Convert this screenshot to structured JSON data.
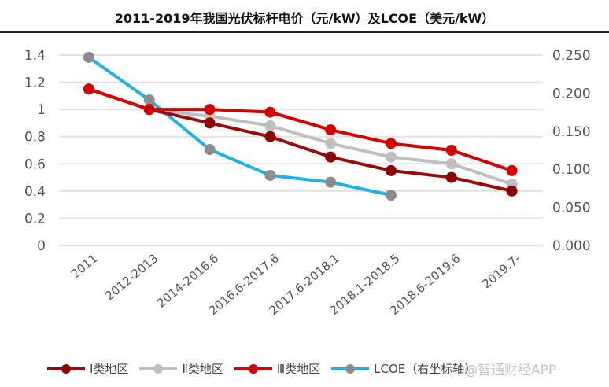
{
  "chart_data": {
    "type": "line",
    "title": "2011-2019年我国光伏标杆电价（元/kW）及LCOE（美元/kW）",
    "categories": [
      "2011",
      "2012-2013",
      "2014-2016.6",
      "2016.6-2017.6",
      "2017.6-2018.1",
      "2018.1-2018.5",
      "2018.6-2019.6",
      "2019.7-"
    ],
    "y_left": {
      "range": [
        0,
        1.4
      ],
      "ticks": [
        0,
        0.2,
        0.4,
        0.6,
        0.8,
        1,
        1.2,
        1.4
      ],
      "tick_labels": [
        "0",
        "0.2",
        "0.4",
        "0.6",
        "0.8",
        "1",
        "1.2",
        "1.4"
      ]
    },
    "y_right": {
      "range": [
        0,
        0.25
      ],
      "ticks": [
        0,
        0.05,
        0.1,
        0.15,
        0.2,
        0.25
      ],
      "tick_labels": [
        "0.000",
        "0.050",
        "0.100",
        "0.150",
        "0.200",
        "0.250"
      ]
    },
    "grid": true,
    "legend_position": "bottom",
    "series": [
      {
        "name": "Ⅰ类地区",
        "axis": "left",
        "color": "#9b0a0a",
        "marker_color": "#8b0000",
        "values": [
          1.15,
          1.0,
          0.9,
          0.8,
          0.65,
          0.55,
          0.5,
          0.4
        ]
      },
      {
        "name": "Ⅱ类地区",
        "axis": "left",
        "color": "#bfbfbf",
        "marker_color": "#bfbfbf",
        "values": [
          1.15,
          1.0,
          0.95,
          0.88,
          0.75,
          0.65,
          0.6,
          0.45
        ]
      },
      {
        "name": "Ⅲ类地区",
        "axis": "left",
        "color": "#d40000",
        "marker_color": "#d40000",
        "values": [
          1.15,
          1.0,
          1.0,
          0.98,
          0.85,
          0.75,
          0.7,
          0.55
        ]
      },
      {
        "name": "LCOE（右坐标轴）",
        "axis": "right",
        "color": "#1fb1e6",
        "marker_color": "#8c8c8c",
        "values": [
          0.247,
          0.191,
          0.126,
          0.092,
          0.083,
          0.066,
          null,
          null
        ]
      }
    ]
  },
  "watermark": "@智通财经APP"
}
